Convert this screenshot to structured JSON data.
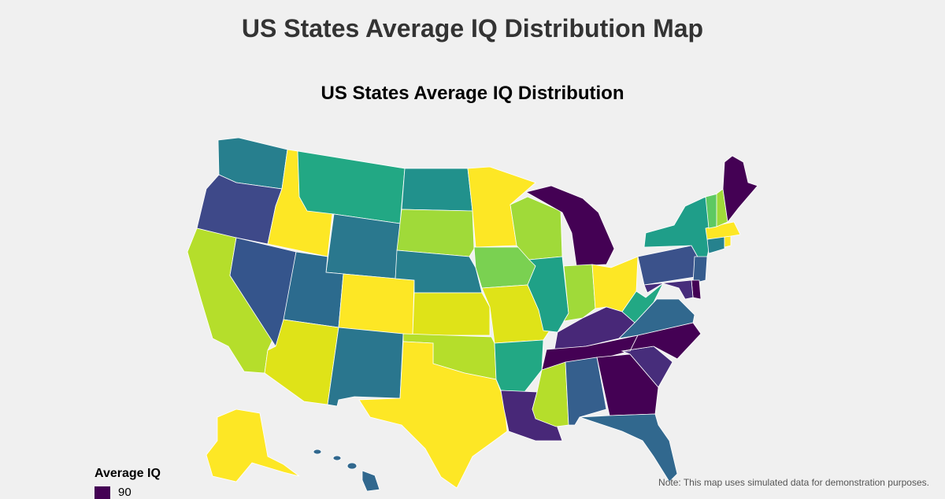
{
  "header": {
    "title": "US States Average IQ Distribution Map"
  },
  "map": {
    "title": "US States Average IQ Distribution",
    "legend": {
      "title": "Average IQ",
      "visible_entries": [
        {
          "label": "90",
          "color": "#440154"
        }
      ]
    },
    "note": "Note: This map uses simulated data for demonstration purposes.",
    "state_colors": {
      "WA": "#277f8e",
      "OR": "#3e4989",
      "CA": "#b5de2b",
      "NV": "#35558c",
      "ID": "#fde725",
      "MT": "#22a884",
      "WY": "#2a788e",
      "UT": "#2c6b8e",
      "AZ": "#dfe318",
      "CO": "#fde725",
      "NM": "#2a768e",
      "ND": "#21918c",
      "SD": "#a0da39",
      "NE": "#277f8e",
      "KS": "#dfe318",
      "OK": "#b5de2b",
      "TX": "#fde725",
      "MN": "#fde725",
      "IA": "#7ad151",
      "MO": "#dfe318",
      "AR": "#22a884",
      "LA": "#482878",
      "WI": "#a0da39",
      "IL": "#1fa187",
      "MI": "#440154",
      "IN": "#a0da39",
      "OH": "#fde725",
      "KY": "#482878",
      "TN": "#440154",
      "MS": "#b5de2b",
      "AL": "#355f8d",
      "GA": "#440154",
      "FL": "#31688e",
      "SC": "#472d7b",
      "NC": "#440154",
      "VA": "#31688e",
      "WV": "#22a884",
      "PA": "#3b528b",
      "NY": "#1f9e89",
      "VT": "#5ec962",
      "NH": "#a0da39",
      "ME": "#440154",
      "MA": "#fde725",
      "CT": "#26828e",
      "NJ": "#365c8d",
      "DE": "#440154",
      "MD": "#472d7b",
      "RI": "#fde725",
      "AK": "#fde725",
      "HI": "#31688e"
    }
  }
}
